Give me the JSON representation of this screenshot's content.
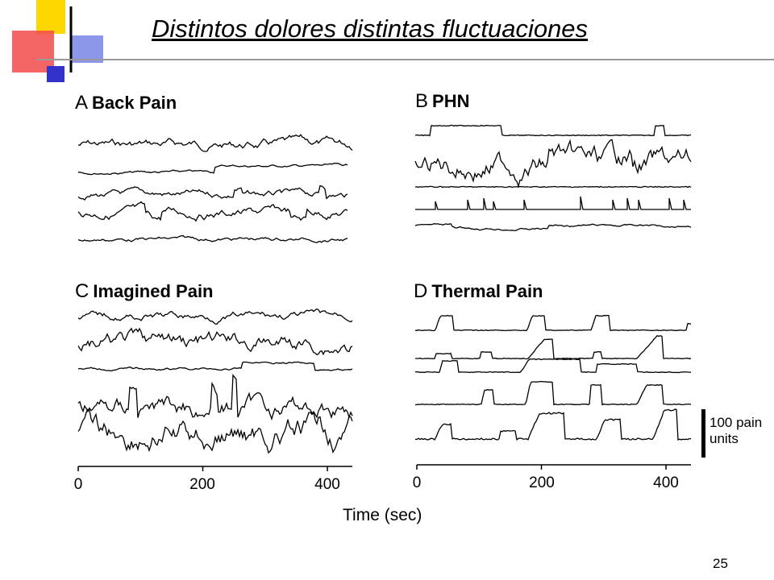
{
  "slide": {
    "title": "Distintos dolores distintas fluctuaciones",
    "page_number": "25"
  },
  "figure": {
    "xlabel": "Time (sec)",
    "scale_bar": {
      "line1": "100 pain",
      "line2": "units"
    }
  },
  "chart_data": [
    {
      "type": "line",
      "panel": "A",
      "title": "Back Pain",
      "xlabel": "Time (sec)",
      "ticks": [
        "0",
        "200",
        "400"
      ],
      "xlim": [
        0,
        440
      ],
      "traces": 5
    },
    {
      "type": "line",
      "panel": "B",
      "title": "PHN",
      "traces": 5
    },
    {
      "type": "line",
      "panel": "C",
      "title": "Imagined Pain",
      "xlabel": "Time (sec)",
      "ticks": [
        "0",
        "200",
        "400"
      ],
      "xlim": [
        0,
        440
      ],
      "traces": 5
    },
    {
      "type": "line",
      "panel": "D",
      "title": "Thermal Pain",
      "xlabel": "Time (sec)",
      "ticks": [
        "0",
        "200",
        "400"
      ],
      "xlim": [
        0,
        440
      ],
      "traces": 5
    }
  ],
  "colors": {
    "accent_yellow": "#FFD700",
    "accent_red": "#F24A4A",
    "accent_blue": "#3333CC",
    "ink": "#000000"
  }
}
